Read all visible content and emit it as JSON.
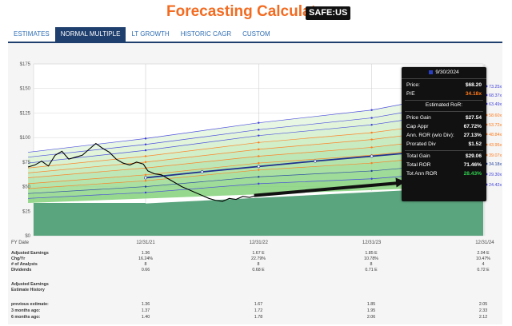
{
  "header": {
    "title": "Forecasting Calculators",
    "ticker": "SAFE:US"
  },
  "tabs": [
    {
      "label": "ESTIMATES",
      "active": false
    },
    {
      "label": "NORMAL MULTIPLE",
      "active": true
    },
    {
      "label": "LT GROWTH",
      "active": false
    },
    {
      "label": "HISTORIC CAGR",
      "active": false
    },
    {
      "label": "CUSTOM",
      "active": false
    }
  ],
  "chart_data": {
    "type": "line",
    "y_ticks": [
      "$175",
      "$150",
      "$125",
      "$100",
      "$75",
      "$50",
      "$25",
      "$0"
    ],
    "ylim": [
      0,
      175
    ],
    "x_axis": {
      "fy_label": "FY Date",
      "dates": [
        "12/31/21",
        "12/31/22",
        "12/31/23",
        "12/31/24"
      ]
    },
    "multiple_labels": [
      "73.25x",
      "68.37x",
      "63.49x",
      "58.60x",
      "53.72x",
      "48.84x",
      "43.95x",
      "39.07x",
      "34.18x",
      "29.30x",
      "24.42x"
    ],
    "multiple_colors": [
      "#3d3ddb",
      "#3d3ddb",
      "#3d3ddb",
      "#ff7a1a",
      "#ff7a1a",
      "#ff7a1a",
      "#ff7a1a",
      "#ff7a1a",
      "#1f3f9e",
      "#3d3ddb",
      "#3d3ddb"
    ],
    "fair_value_line": {
      "x": [
        0.0,
        0.5,
        1.0,
        1.5,
        2.0,
        2.5,
        3.0
      ],
      "y": [
        59,
        65,
        70.5,
        76,
        81,
        86,
        91
      ]
    },
    "earnings_line": {
      "x": [
        0.0,
        3.0
      ],
      "y": [
        33.4,
        50.8
      ]
    },
    "bands_upper": [
      {
        "x": [
          -1.04,
          0.0,
          1.0,
          2.0,
          3.0
        ],
        "y": [
          85,
          99,
          115,
          128,
          150
        ]
      },
      {
        "x": [
          -1.04,
          0.0,
          1.0,
          2.0,
          3.0
        ],
        "y": [
          80,
          93,
          108,
          120,
          140
        ]
      },
      {
        "x": [
          -1.04,
          0.0,
          1.0,
          2.0,
          3.0
        ],
        "y": [
          74,
          87,
          102,
          113,
          130
        ]
      },
      {
        "x": [
          -1.04,
          0.0,
          1.0,
          2.0,
          3.0
        ],
        "y": [
          69,
          81,
          95,
          105,
          120
        ]
      },
      {
        "x": [
          -1.04,
          0.0,
          1.0,
          2.0,
          3.0
        ],
        "y": [
          64,
          75,
          88,
          98,
          112
        ]
      },
      {
        "x": [
          -1.04,
          0.0,
          1.0,
          2.0,
          3.0
        ],
        "y": [
          59,
          69,
          81,
          90,
          103
        ]
      },
      {
        "x": [
          -1.04,
          0.0,
          1.0,
          2.0,
          3.0
        ],
        "y": [
          53,
          62,
          74,
          82,
          94
        ]
      },
      {
        "x": [
          -1.04,
          0.0,
          1.0,
          2.0,
          3.0
        ],
        "y": [
          48,
          56,
          67,
          74,
          85
        ]
      },
      {
        "x": [
          -1.04,
          0.0,
          1.0,
          2.0,
          3.0
        ],
        "y": [
          43,
          50,
          60,
          66,
          76
        ]
      },
      {
        "x": [
          -1.04,
          0.0,
          1.0,
          2.0,
          3.0
        ],
        "y": [
          38,
          44,
          53,
          58,
          67
        ]
      }
    ],
    "price_line": {
      "x": [
        -1.04,
        -0.98,
        -0.92,
        -0.86,
        -0.8,
        -0.74,
        -0.68,
        -0.62,
        -0.56,
        -0.5,
        -0.44,
        -0.38,
        -0.32,
        -0.26,
        -0.2,
        -0.14,
        -0.08,
        -0.02,
        0.02,
        0.08,
        0.14,
        0.2,
        0.26,
        0.32,
        0.38,
        0.44,
        0.5,
        0.56,
        0.62,
        0.68,
        0.74,
        0.8,
        0.86,
        0.92,
        0.98,
        1.0
      ],
      "y": [
        70,
        72,
        76,
        71,
        82,
        86,
        78,
        80,
        82,
        88,
        94,
        89,
        85,
        78,
        74,
        72,
        75,
        73,
        66,
        63,
        62,
        58,
        54,
        50,
        47,
        44,
        41,
        38,
        36,
        35,
        38,
        37,
        40,
        39,
        41,
        42
      ]
    },
    "arrow": {
      "from": [
        0.96,
        41
      ],
      "to": [
        2.3,
        55
      ]
    },
    "annotation": {
      "date": "9/30/2024",
      "price_label": "Price:",
      "price": "$68.20",
      "pe_label": "P/E",
      "pe": "34.18x",
      "section": "Estimated RoR:",
      "price_gain_label": "Price Gain",
      "price_gain": "$27.54",
      "cap_appr_label": "Cap Appr",
      "cap_appr": "67.72%",
      "ann_ror_label": "Ann. ROR (w/o Div):",
      "ann_ror": "27.13%",
      "prorated_div_label": "Prorated Div",
      "prorated_div": "$1.52",
      "total_gain_label": "Total Gain",
      "total_gain": "$29.06",
      "total_ror_label": "Total ROR",
      "total_ror": "71.46%",
      "tot_ann_ror_label": "Tot Ann ROR",
      "tot_ann_ror": "28.43%"
    }
  },
  "table": {
    "rows": [
      {
        "label": "Adjusted Earnings",
        "values": [
          "1.36",
          "1.67 E",
          "1.85 E",
          "2.04 E"
        ]
      },
      {
        "label": "Chg/Yr",
        "values": [
          "16.24%",
          "22.79%",
          "10.78%",
          "10.47%"
        ]
      },
      {
        "label": "# of Analysts",
        "values": [
          "8",
          "8",
          "8",
          "4"
        ]
      },
      {
        "label": "Dividends",
        "values": [
          "0.66",
          "0.68 E",
          "0.71 E",
          "0.72 E"
        ]
      }
    ],
    "history_label_1": "Adjusted Earnings",
    "history_label_2": "Estimate History",
    "history_rows": [
      {
        "label": "previous estimate:",
        "values": [
          "1.36",
          "1.67",
          "1.85",
          "2.05"
        ]
      },
      {
        "label": "3 months ago:",
        "values": [
          "1.37",
          "1.72",
          "1.95",
          "2.33"
        ]
      },
      {
        "label": "6 months ago:",
        "values": [
          "1.40",
          "1.78",
          "2.06",
          "2.12"
        ]
      }
    ]
  }
}
